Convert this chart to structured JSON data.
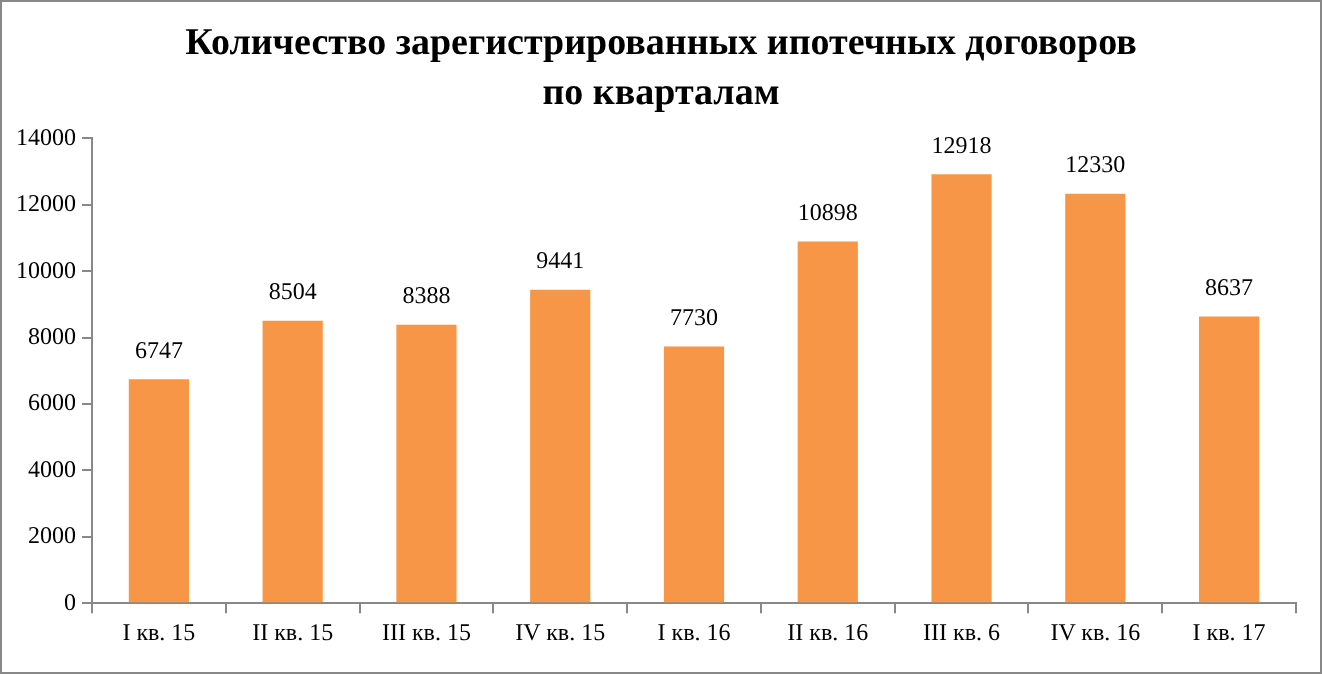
{
  "chart_data": {
    "type": "bar",
    "title": "Количество зарегистрированных ипотечных договоров по кварталам",
    "categories": [
      "I кв. 15",
      "II кв. 15",
      "III кв. 15",
      "IV кв. 15",
      "I кв. 16",
      "II кв. 16",
      "III кв. 6",
      "IV кв. 16",
      "I кв. 17"
    ],
    "values": [
      6747,
      8504,
      8388,
      9441,
      7730,
      10898,
      12918,
      12330,
      8637
    ],
    "color": "#f79646",
    "ylim": [
      0,
      14000
    ],
    "yticks": [
      0,
      2000,
      4000,
      6000,
      8000,
      10000,
      12000,
      14000
    ],
    "grid": false,
    "data_labels": true,
    "legend": false
  }
}
